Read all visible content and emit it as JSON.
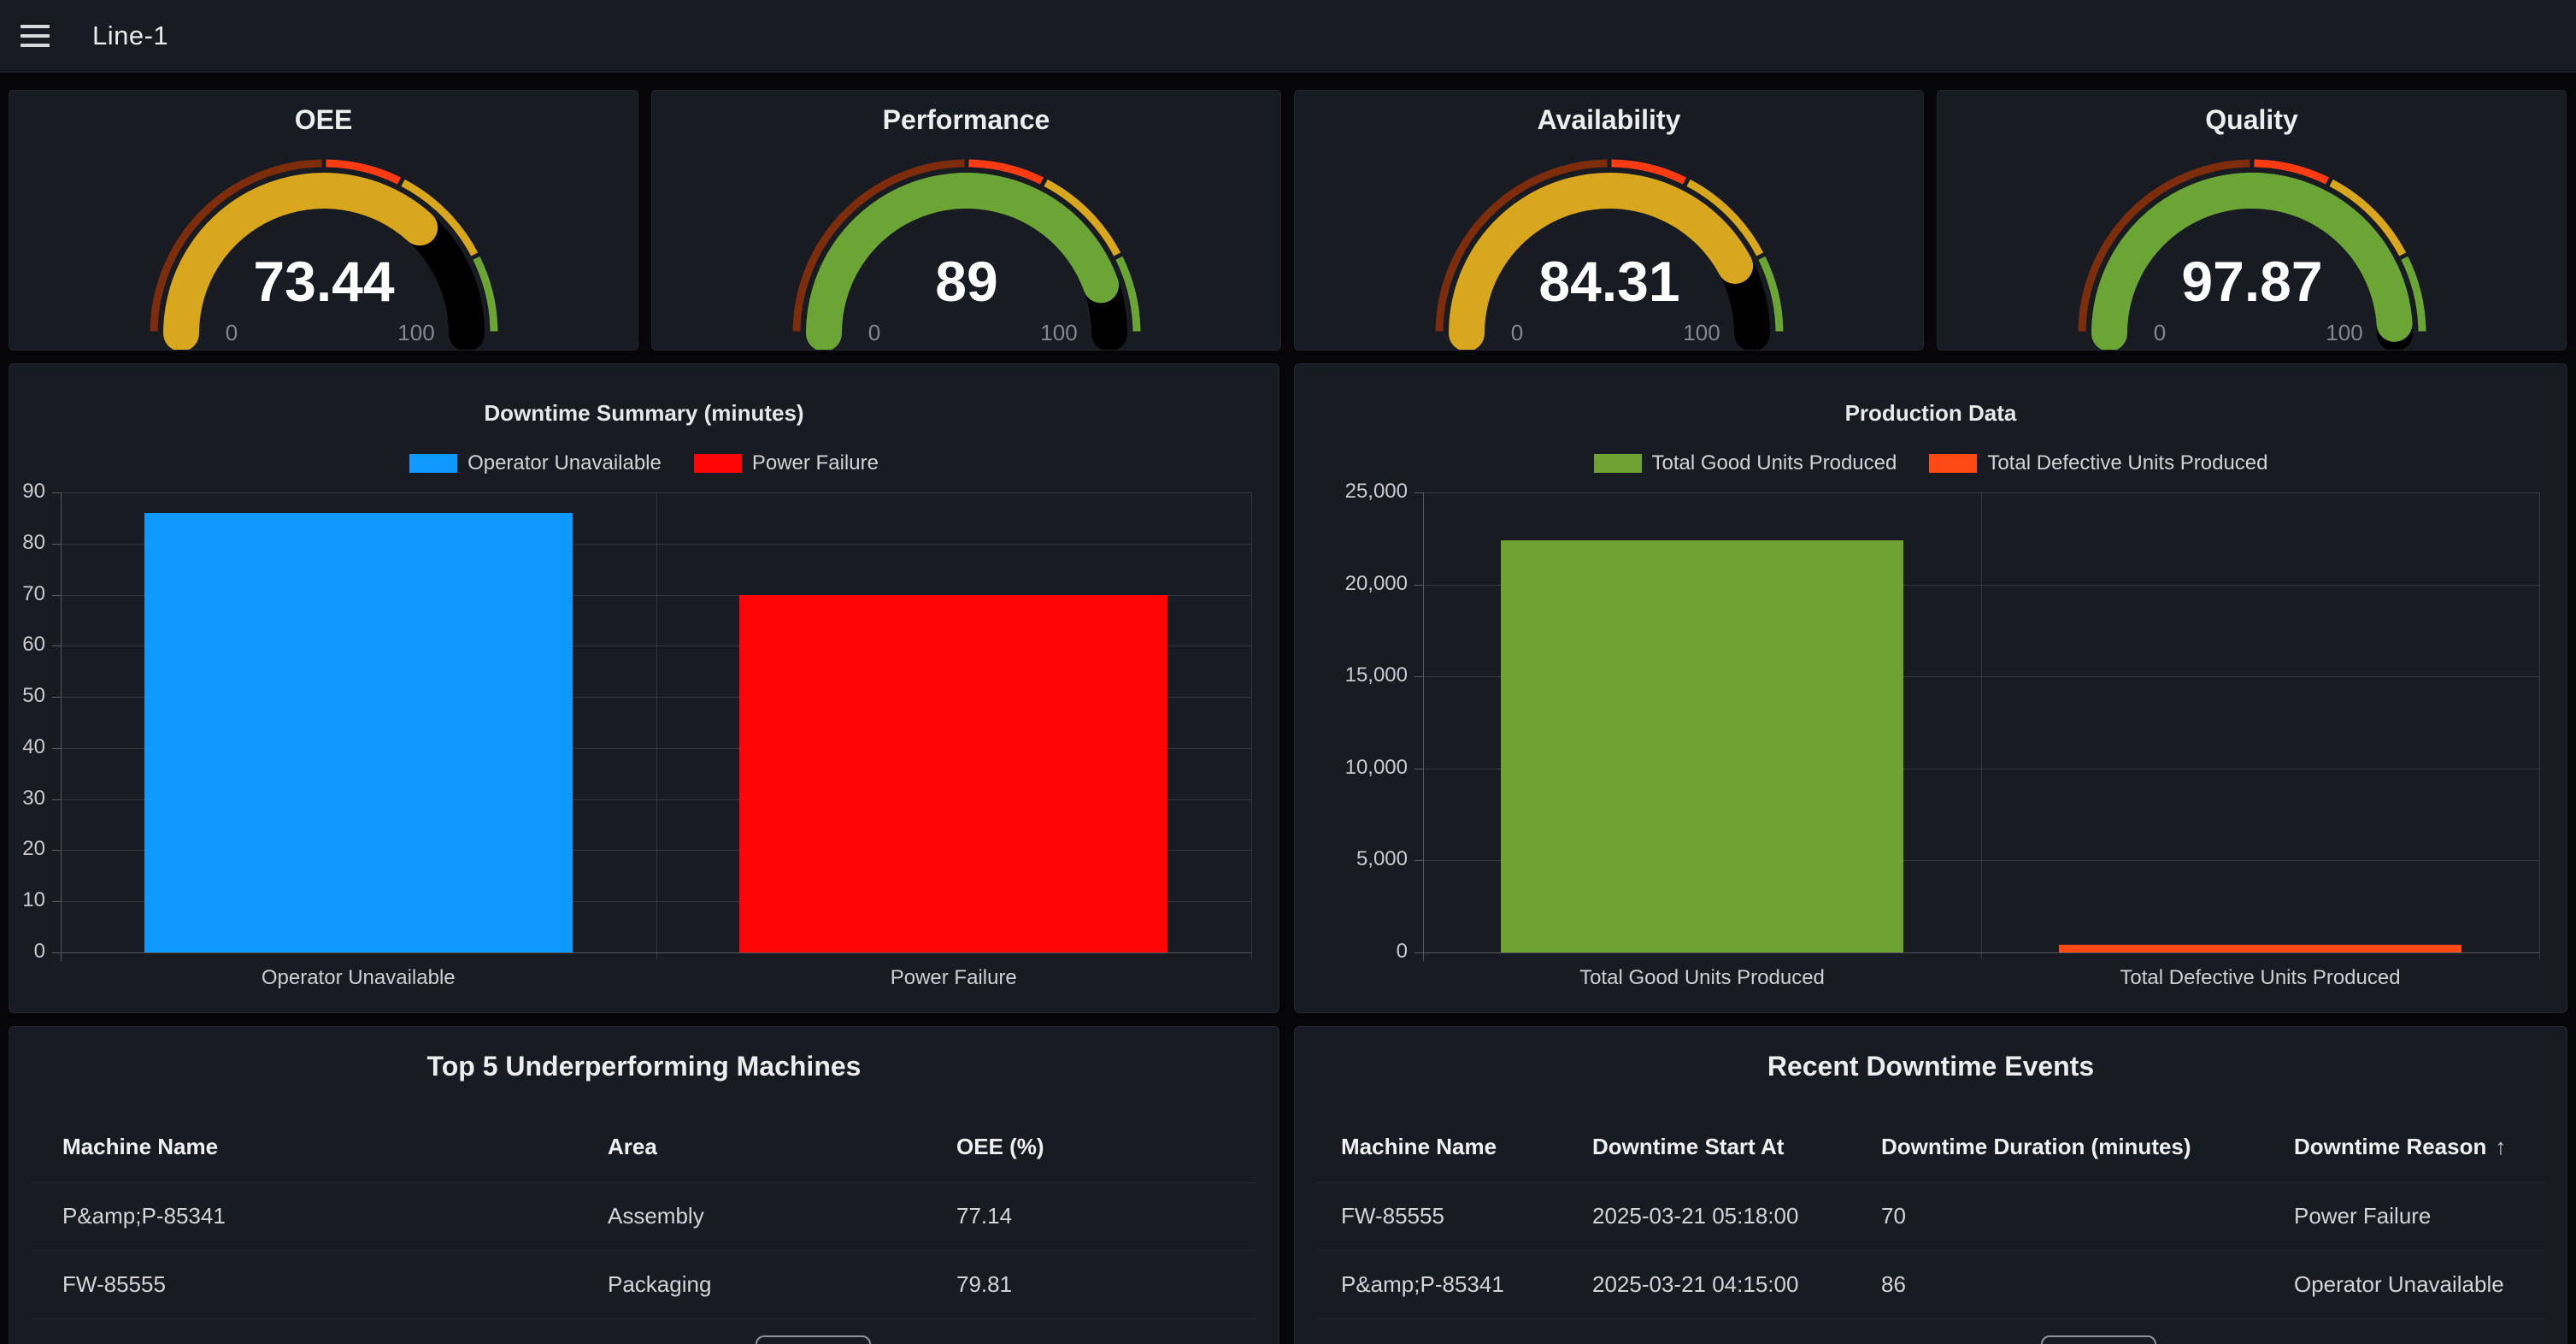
{
  "header": {
    "title": "Line-1"
  },
  "colors": {
    "page_bg": "#060608",
    "panel_bg": "#191b22",
    "gauge_black_remainder": "#000000",
    "bar_blue": "#0d99ff",
    "bar_red": "#ff0505",
    "bar_green": "#6ea331",
    "bar_orange": "#ff4a14"
  },
  "gauge_thresholds": [
    {
      "from": 0,
      "color": "#7e2d0c"
    },
    {
      "from": 50,
      "color": "#ff3b14"
    },
    {
      "from": 65,
      "color": "#d9a71e"
    },
    {
      "from": 85,
      "color": "#6ba535"
    }
  ],
  "gauges": [
    {
      "title": "OEE",
      "value": "73.44",
      "value_num": 73.44,
      "value_color": "#d9a71e",
      "min_label": "0",
      "max_label": "100"
    },
    {
      "title": "Performance",
      "value": "89",
      "value_num": 89,
      "value_color": "#6ba535",
      "min_label": "0",
      "max_label": "100"
    },
    {
      "title": "Availability",
      "value": "84.31",
      "value_num": 84.31,
      "value_color": "#d9a71e",
      "min_label": "0",
      "max_label": "100"
    },
    {
      "title": "Quality",
      "value": "97.87",
      "value_num": 97.87,
      "value_color": "#6ba535",
      "min_label": "0",
      "max_label": "100"
    }
  ],
  "chart_data": [
    {
      "type": "bar",
      "title": "Downtime Summary (minutes)",
      "categories": [
        "Operator Unavailable",
        "Power Failure"
      ],
      "values": [
        86,
        70
      ],
      "bar_colors": [
        "#0d99ff",
        "#ff0505"
      ],
      "legend": [
        {
          "label": "Operator Unavailable",
          "color": "#0d99ff"
        },
        {
          "label": "Power Failure",
          "color": "#ff0505"
        }
      ],
      "xlabel": "",
      "ylabel": "",
      "ylim": [
        0,
        90
      ],
      "ytick_step": 10,
      "grid": true,
      "legend_position": "top"
    },
    {
      "type": "bar",
      "title": "Production Data",
      "categories": [
        "Total Good Units Produced",
        "Total Defective Units Produced"
      ],
      "values": [
        22400,
        400
      ],
      "bar_colors": [
        "#6ea331",
        "#ff4a14"
      ],
      "legend": [
        {
          "label": "Total Good Units Produced",
          "color": "#6ea331"
        },
        {
          "label": "Total Defective Units Produced",
          "color": "#ff4a14"
        }
      ],
      "xlabel": "",
      "ylabel": "",
      "ylim": [
        0,
        25000
      ],
      "ytick_step": 5000,
      "grid": true,
      "legend_position": "top"
    }
  ],
  "tables": [
    {
      "title": "Top 5 Underperforming Machines",
      "columns": [
        {
          "label": "Machine Name",
          "sorted": false
        },
        {
          "label": "Area",
          "sorted": false
        },
        {
          "label": "OEE (%)",
          "sorted": false
        }
      ],
      "rows": [
        [
          "P&amp;P-85341",
          "Assembly",
          "77.14"
        ],
        [
          "FW-85555",
          "Packaging",
          "79.81"
        ]
      ]
    },
    {
      "title": "Recent Downtime Events",
      "columns": [
        {
          "label": "Machine Name",
          "sorted": false
        },
        {
          "label": "Downtime Start At",
          "sorted": false
        },
        {
          "label": "Downtime Duration (minutes)",
          "sorted": false
        },
        {
          "label": "Downtime Reason",
          "sorted": true,
          "sort_dir": "asc"
        }
      ],
      "rows": [
        [
          "FW-85555",
          "2025-03-21 05:18:00",
          "70",
          "Power Failure"
        ],
        [
          "P&amp;P-85341",
          "2025-03-21 04:15:00",
          "86",
          "Operator Unavailable"
        ]
      ]
    }
  ]
}
